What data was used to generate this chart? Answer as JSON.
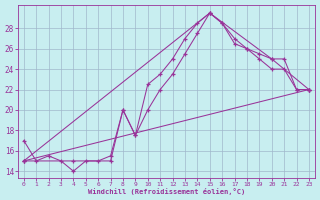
{
  "xlabel": "Windchill (Refroidissement éolien,°C)",
  "bg_color": "#c8eef0",
  "grid_color": "#a0b8cc",
  "line_color": "#993399",
  "xlim_min": -0.5,
  "xlim_max": 23.5,
  "ylim_min": 13.3,
  "ylim_max": 30.3,
  "yticks": [
    14,
    16,
    18,
    20,
    22,
    24,
    26,
    28
  ],
  "xticks": [
    0,
    1,
    2,
    3,
    4,
    5,
    6,
    7,
    8,
    9,
    10,
    11,
    12,
    13,
    14,
    15,
    16,
    17,
    18,
    19,
    20,
    21,
    22,
    23
  ],
  "curve1_x": [
    0,
    1,
    2,
    3,
    4,
    5,
    6,
    7,
    8,
    9,
    10,
    11,
    12,
    13,
    14,
    15,
    16,
    17,
    18,
    19,
    20,
    21,
    22,
    23
  ],
  "curve1_y": [
    17.0,
    15.0,
    15.5,
    15.0,
    14.0,
    15.0,
    15.0,
    15.5,
    20.0,
    17.5,
    22.5,
    23.5,
    25.0,
    27.0,
    28.5,
    29.5,
    28.5,
    27.0,
    26.0,
    25.0,
    24.0,
    24.0,
    22.0,
    22.0
  ],
  "curve2_x": [
    0,
    4,
    7,
    8,
    9,
    10,
    11,
    12,
    13,
    14,
    15,
    16,
    17,
    18,
    19,
    20,
    21,
    22,
    23
  ],
  "curve2_y": [
    15.0,
    15.0,
    15.0,
    20.0,
    17.5,
    20.0,
    22.0,
    23.5,
    25.5,
    27.5,
    29.5,
    28.5,
    26.5,
    26.0,
    25.5,
    25.0,
    25.0,
    22.0,
    22.0
  ],
  "curve3_x": [
    0,
    15,
    20,
    23
  ],
  "curve3_y": [
    15.0,
    29.5,
    25.0,
    22.0
  ],
  "curve4_x": [
    0,
    23
  ],
  "curve4_y": [
    15.0,
    22.0
  ]
}
